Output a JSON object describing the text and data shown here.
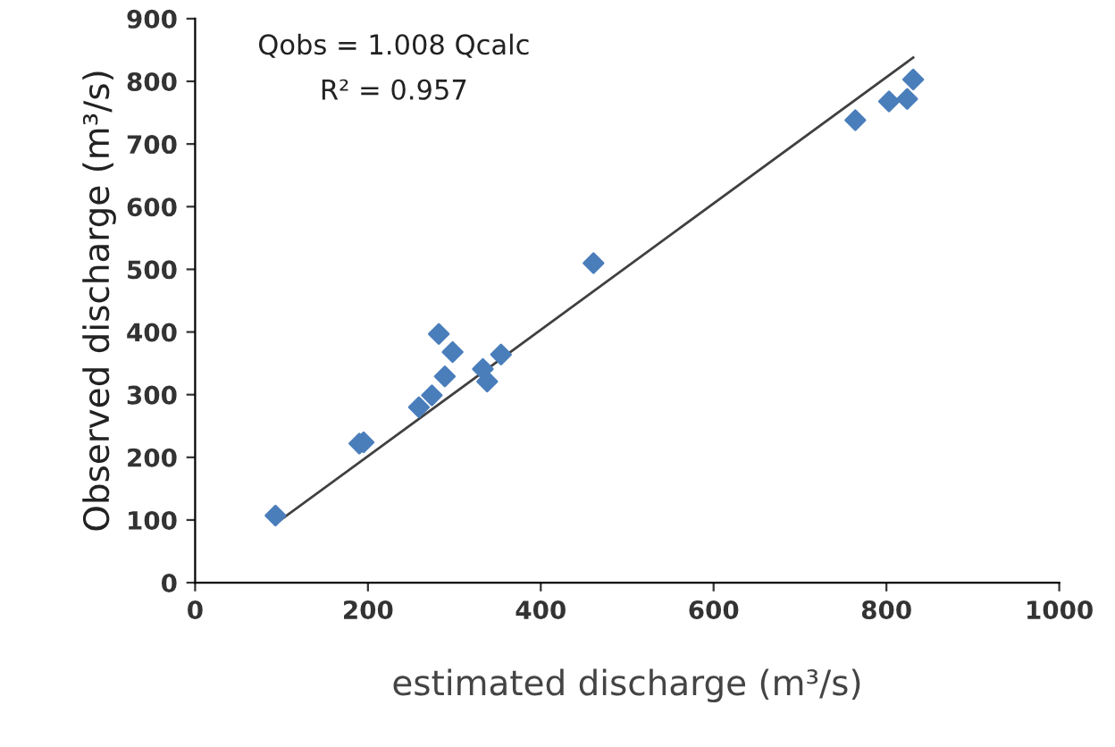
{
  "chart_data": {
    "type": "scatter",
    "xlabel": "estimated discharge (m³/s)",
    "ylabel": "Observed discharge (m³/s)",
    "annotations": [
      "Qobs = 1.008 Qcalc",
      "R² = 0.957"
    ],
    "xlim": [
      0,
      1000
    ],
    "xticks": [
      0,
      200,
      400,
      600,
      800,
      1000
    ],
    "ylim": [
      0,
      900
    ],
    "yticks": [
      0,
      100,
      200,
      300,
      400,
      500,
      600,
      700,
      800,
      900
    ],
    "grid": false,
    "legend": false,
    "series": [
      {
        "marker": "diamond",
        "color": "#4a7ebb",
        "x": [
          93,
          190,
          195,
          259,
          274,
          289,
          282,
          298,
          333,
          338,
          354,
          461,
          764,
          803,
          824,
          831
        ],
        "values": [
          107,
          222,
          224,
          280,
          299,
          329,
          397,
          368,
          341,
          321,
          364,
          510,
          738,
          768,
          772,
          803
        ]
      },
      {
        "type": "line",
        "color": "#404040",
        "x": [
          93,
          831
        ],
        "values": [
          94,
          838
        ]
      }
    ]
  }
}
